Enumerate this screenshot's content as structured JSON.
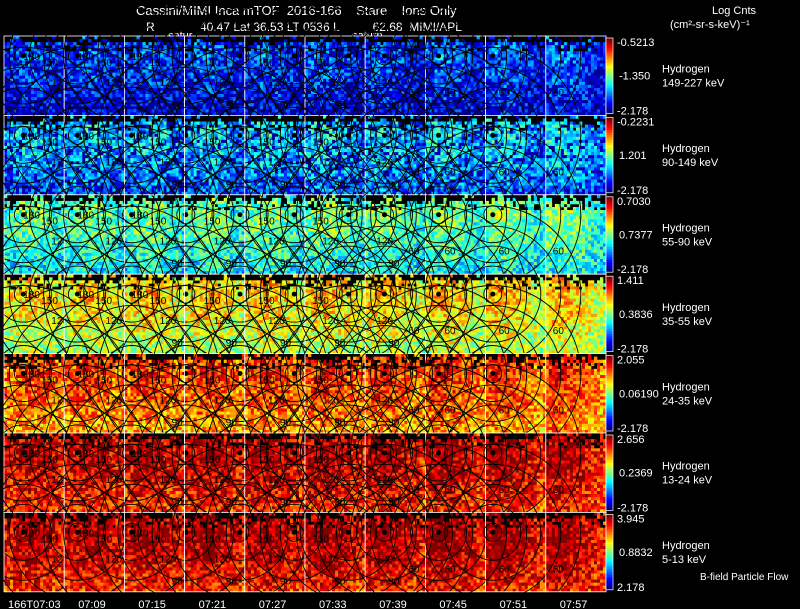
{
  "header": {
    "title": "Cassini/MIMI Inca mTOF  2016-166    Stare    Ions Only",
    "r_label": "R",
    "position_line": "40.47 Lat 36.53 LT 0536 L          62.68  MIMI/APL",
    "saturn_left": "satur",
    "saturn_right": "saturn",
    "units_title": "Log Cnts",
    "units_line": "(cm²-sr-s-keV)⁻¹",
    "footer_note": "B-field Particle Flow"
  },
  "chart_data": {
    "type": "heatmap",
    "title": "Cassini/MIMI Inca mTOF  2016-166    Stare    Ions Only",
    "time_labels": [
      "166T07:03",
      "07:09",
      "07:15",
      "07:21",
      "07:27",
      "07:33",
      "07:39",
      "07:45",
      "07:51",
      "07:57"
    ],
    "contour_levels": [
      "180",
      "150",
      "120",
      "90",
      "60"
    ],
    "colormap": [
      "#000080",
      "#0000ff",
      "#0080ff",
      "#00ffff",
      "#80ff80",
      "#ffff00",
      "#ff8000",
      "#ff0000",
      "#800000"
    ],
    "rows": [
      {
        "species": "Hydrogen",
        "energy": "149-227 keV",
        "cb_max": "-0.5213",
        "cb_mid": "-1.350",
        "cb_min": "-2.178",
        "level": 0.15
      },
      {
        "species": "Hydrogen",
        "energy": "90-149 keV",
        "cb_max": "-0.2231",
        "cb_mid": "1.201",
        "cb_min": "-2.178",
        "level": 0.28
      },
      {
        "species": "Hydrogen",
        "energy": "55-90 keV",
        "cb_max": "0.7030",
        "cb_mid": "0.7377",
        "cb_min": "-2.178",
        "level": 0.42
      },
      {
        "species": "Hydrogen",
        "energy": "35-55 keV",
        "cb_max": "1.411",
        "cb_mid": "0.3836",
        "cb_min": "-2.178",
        "level": 0.6
      },
      {
        "species": "Hydrogen",
        "energy": "24-35 keV",
        "cb_max": "2.055",
        "cb_mid": "0.06190",
        "cb_min": "-2.178",
        "level": 0.76
      },
      {
        "species": "Hydrogen",
        "energy": "13-24 keV",
        "cb_max": "2.656",
        "cb_mid": "0.2369",
        "cb_min": "-2.178",
        "level": 0.88
      },
      {
        "species": "Hydrogen",
        "energy": "5-13 keV",
        "cb_max": "3.945",
        "cb_mid": "0.8832",
        "cb_min": "2.178",
        "level": 0.9
      }
    ]
  }
}
